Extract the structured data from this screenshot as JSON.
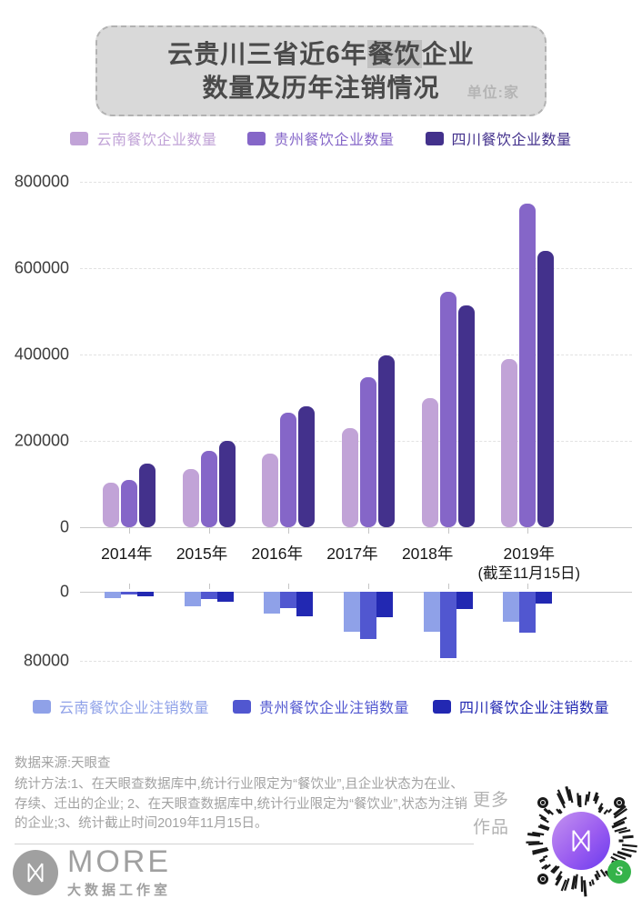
{
  "title": {
    "line1_pre": "云贵川三省近6年",
    "line1_highlight": "餐饮",
    "line1_post": "企业",
    "line2": "数量及历年注销情况",
    "unit_label": "单位:家"
  },
  "chart_data": {
    "type": "bar",
    "title": "云贵川三省近6年餐饮企业数量及历年注销情况",
    "unit": "家",
    "categories": [
      "2014年",
      "2015年",
      "2016年",
      "2017年",
      "2018年",
      "2019年\n(截至11月15日)"
    ],
    "grid": "horizontal dashed",
    "legend_position": "top and bottom",
    "top_chart": {
      "label": "餐饮企业数量",
      "ylim": [
        0,
        800000
      ],
      "yticks": [
        800000,
        600000,
        400000,
        200000,
        0
      ],
      "series": [
        {
          "name": "云南餐饮企业数量",
          "color": "#c1a3d7",
          "values": [
            103000,
            135000,
            170000,
            229000,
            298000,
            390000
          ]
        },
        {
          "name": "贵州餐饮企业数量",
          "color": "#8566c8",
          "values": [
            110000,
            176000,
            265000,
            348000,
            545000,
            750000
          ]
        },
        {
          "name": "四川餐饮企业数量",
          "color": "#43318c",
          "values": [
            147000,
            201000,
            279000,
            398000,
            513000,
            640000
          ]
        }
      ]
    },
    "bottom_chart": {
      "label": "餐饮企业注销数量",
      "orientation": "downward",
      "ylim": [
        0,
        80000
      ],
      "yticks": [
        0,
        80000
      ],
      "series": [
        {
          "name": "云南餐饮企业注销数量",
          "color": "#8fa1e8",
          "values": [
            7000,
            17000,
            25000,
            46000,
            46000,
            35000
          ]
        },
        {
          "name": "贵州餐饮企业注销数量",
          "color": "#5157d0",
          "values": [
            3500,
            8500,
            18500,
            55000,
            77000,
            47500
          ]
        },
        {
          "name": "四川餐饮企业注销数量",
          "color": "#2228b2",
          "values": [
            5500,
            12000,
            28000,
            29000,
            20000,
            14000
          ]
        }
      ]
    }
  },
  "footer": {
    "source": "数据来源:天眼查",
    "method": "统计方法:1、在天眼查数据库中,统计行业限定为“餐饮业”,且企业状态为在业、存续、迁出的企业;  2、在天眼查数据库中,统计行业限定为“餐饮业”,状态为注销的企业;3、统计截止时间2019年11月15日。",
    "more_works_line1": "更多",
    "more_works_line2": "作品",
    "logo_name": "MORE",
    "logo_sub": "大数据工作室"
  }
}
